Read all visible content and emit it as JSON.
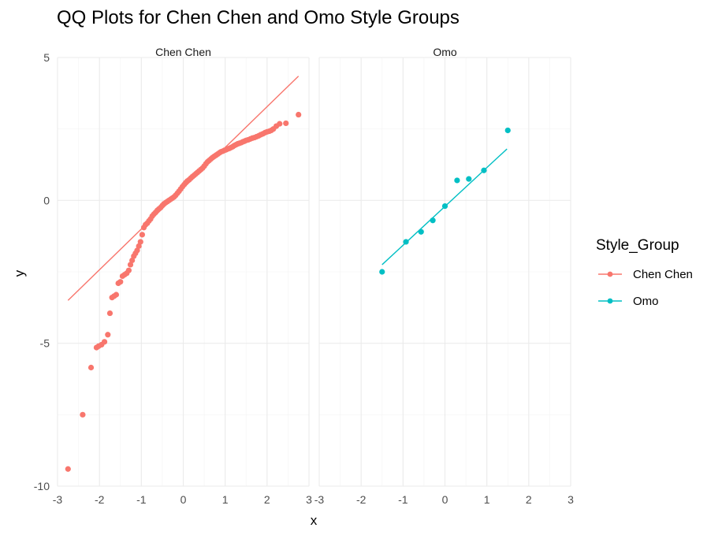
{
  "chart_data": {
    "type": "scatter",
    "title": "QQ Plots for Chen Chen and Omo Style Groups",
    "xlabel": "x",
    "ylabel": "y",
    "xlim": [
      -3,
      3
    ],
    "ylim": [
      -10,
      5
    ],
    "x_ticks": [
      "-3",
      "-2",
      "-1",
      "0",
      "1",
      "2",
      "3"
    ],
    "y_ticks": [
      "-10",
      "-5",
      "0",
      "5"
    ],
    "grid": true,
    "legend": {
      "title": "Style_Group",
      "placement": "right",
      "entries": [
        "Chen Chen",
        "Omo"
      ]
    },
    "panels": [
      {
        "strip": "Chen Chen",
        "color": "#F8766D",
        "line": [
          [
            -2.75,
            -3.5
          ],
          [
            2.75,
            4.35
          ]
        ],
        "points": [
          [
            -2.75,
            -9.4
          ],
          [
            -2.4,
            -7.5
          ],
          [
            -2.2,
            -5.85
          ],
          [
            -2.07,
            -5.15
          ],
          [
            -2.02,
            -5.1
          ],
          [
            -1.95,
            -5.05
          ],
          [
            -1.88,
            -4.95
          ],
          [
            -1.8,
            -4.7
          ],
          [
            -1.75,
            -3.95
          ],
          [
            -1.7,
            -3.4
          ],
          [
            -1.65,
            -3.35
          ],
          [
            -1.6,
            -3.3
          ],
          [
            -1.55,
            -2.9
          ],
          [
            -1.5,
            -2.85
          ],
          [
            -1.45,
            -2.65
          ],
          [
            -1.4,
            -2.6
          ],
          [
            -1.35,
            -2.55
          ],
          [
            -1.3,
            -2.45
          ],
          [
            -1.26,
            -2.25
          ],
          [
            -1.22,
            -2.1
          ],
          [
            -1.18,
            -1.95
          ],
          [
            -1.14,
            -1.85
          ],
          [
            -1.1,
            -1.75
          ],
          [
            -1.06,
            -1.6
          ],
          [
            -1.02,
            -1.45
          ],
          [
            -0.98,
            -1.2
          ],
          [
            -0.94,
            -0.95
          ],
          [
            -0.9,
            -0.85
          ],
          [
            -0.86,
            -0.8
          ],
          [
            -0.82,
            -0.72
          ],
          [
            -0.78,
            -0.65
          ],
          [
            -0.74,
            -0.55
          ],
          [
            -0.7,
            -0.48
          ],
          [
            -0.66,
            -0.42
          ],
          [
            -0.62,
            -0.35
          ],
          [
            -0.58,
            -0.3
          ],
          [
            -0.54,
            -0.25
          ],
          [
            -0.5,
            -0.18
          ],
          [
            -0.46,
            -0.12
          ],
          [
            -0.42,
            -0.08
          ],
          [
            -0.38,
            -0.04
          ],
          [
            -0.34,
            0.0
          ],
          [
            -0.3,
            0.04
          ],
          [
            -0.26,
            0.08
          ],
          [
            -0.22,
            0.12
          ],
          [
            -0.18,
            0.18
          ],
          [
            -0.14,
            0.25
          ],
          [
            -0.1,
            0.32
          ],
          [
            -0.06,
            0.4
          ],
          [
            -0.02,
            0.48
          ],
          [
            0.02,
            0.55
          ],
          [
            0.06,
            0.62
          ],
          [
            0.1,
            0.68
          ],
          [
            0.14,
            0.72
          ],
          [
            0.18,
            0.78
          ],
          [
            0.22,
            0.83
          ],
          [
            0.26,
            0.88
          ],
          [
            0.3,
            0.93
          ],
          [
            0.34,
            0.98
          ],
          [
            0.38,
            1.03
          ],
          [
            0.42,
            1.08
          ],
          [
            0.46,
            1.13
          ],
          [
            0.5,
            1.2
          ],
          [
            0.54,
            1.28
          ],
          [
            0.58,
            1.35
          ],
          [
            0.62,
            1.4
          ],
          [
            0.66,
            1.45
          ],
          [
            0.7,
            1.5
          ],
          [
            0.74,
            1.54
          ],
          [
            0.78,
            1.58
          ],
          [
            0.82,
            1.62
          ],
          [
            0.86,
            1.66
          ],
          [
            0.9,
            1.7
          ],
          [
            0.94,
            1.72
          ],
          [
            0.98,
            1.75
          ],
          [
            1.02,
            1.77
          ],
          [
            1.06,
            1.8
          ],
          [
            1.1,
            1.82
          ],
          [
            1.14,
            1.85
          ],
          [
            1.18,
            1.88
          ],
          [
            1.22,
            1.92
          ],
          [
            1.26,
            1.95
          ],
          [
            1.3,
            1.98
          ],
          [
            1.34,
            2.0
          ],
          [
            1.38,
            2.02
          ],
          [
            1.42,
            2.05
          ],
          [
            1.46,
            2.07
          ],
          [
            1.5,
            2.1
          ],
          [
            1.55,
            2.12
          ],
          [
            1.6,
            2.15
          ],
          [
            1.65,
            2.18
          ],
          [
            1.7,
            2.2
          ],
          [
            1.75,
            2.23
          ],
          [
            1.8,
            2.26
          ],
          [
            1.85,
            2.3
          ],
          [
            1.9,
            2.33
          ],
          [
            1.95,
            2.37
          ],
          [
            2.0,
            2.4
          ],
          [
            2.05,
            2.42
          ],
          [
            2.1,
            2.45
          ],
          [
            2.15,
            2.5
          ],
          [
            2.22,
            2.6
          ],
          [
            2.3,
            2.68
          ],
          [
            2.45,
            2.7
          ],
          [
            2.75,
            3.0
          ]
        ]
      },
      {
        "strip": "Omo",
        "color": "#00BFC4",
        "line": [
          [
            -1.5,
            -2.25
          ],
          [
            1.48,
            1.8
          ]
        ],
        "points": [
          [
            -1.5,
            -2.5
          ],
          [
            -0.93,
            -1.45
          ],
          [
            -0.57,
            -1.1
          ],
          [
            -0.29,
            -0.7
          ],
          [
            0.0,
            -0.2
          ],
          [
            0.29,
            0.7
          ],
          [
            0.57,
            0.75
          ],
          [
            0.93,
            1.05
          ],
          [
            1.5,
            2.45
          ]
        ]
      }
    ]
  }
}
